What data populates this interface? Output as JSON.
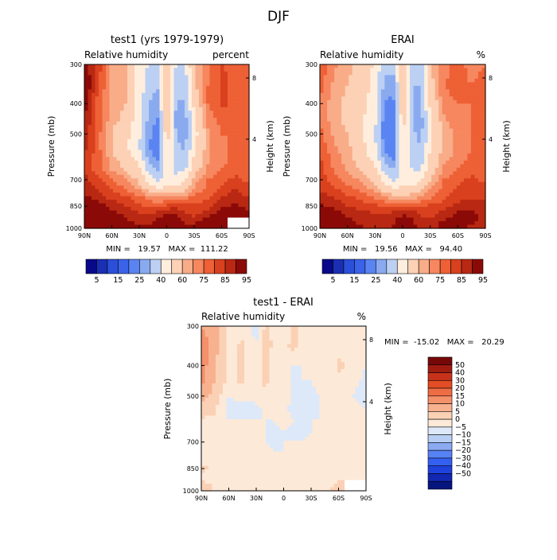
{
  "figure": {
    "title": "DJF"
  },
  "palette": {
    "cb_fill": [
      "#08088a",
      "#1a2fb3",
      "#2b4fd9",
      "#3a63ea",
      "#5a84f2",
      "#8aaaf0",
      "#bcd0f3",
      "#ffeedd",
      "#fcd1b5",
      "#f9ac88",
      "#f6875f",
      "#ee6035",
      "#d9401e",
      "#b92812",
      "#8b0a08"
    ],
    "diff_fill": [
      "#07157f",
      "#1228b2",
      "#1f41dd",
      "#3460f2",
      "#5782f4",
      "#8baaf2",
      "#b8cff3",
      "#dde9f9",
      "#fde9d8",
      "#fbd1b5",
      "#f8b18f",
      "#f4906a",
      "#ef6d44",
      "#e34c24",
      "#c9321a",
      "#a01c10",
      "#760808"
    ]
  },
  "chart_data": [
    {
      "id": "test1",
      "type": "heatmap",
      "title": "test1 (yrs 1979-1979)",
      "subtitle_left": "Relative humidity",
      "subtitle_right": "percent",
      "x_ticks": [
        "90N",
        "60N",
        "30N",
        "0",
        "30S",
        "60S",
        "90S"
      ],
      "xlim": [
        -90,
        90
      ],
      "ylabel": "Pressure (mb)",
      "y_ticks": [
        300,
        400,
        500,
        700,
        850,
        1000
      ],
      "ylim": [
        1000,
        300
      ],
      "y2label": "Height (km)",
      "y2_ticks": [
        "8",
        "4"
      ],
      "levels": [
        5,
        10,
        15,
        20,
        25,
        30,
        40,
        50,
        60,
        65,
        70,
        75,
        80,
        85,
        90,
        95
      ],
      "stats": "MIN =   19.57   MAX =  111.22",
      "grid_lat": [
        -90,
        -75,
        -60,
        -45,
        -30,
        -20,
        -10,
        0,
        10,
        20,
        30,
        45,
        60,
        75,
        90
      ],
      "grid_p": [
        300,
        350,
        400,
        450,
        500,
        550,
        600,
        650,
        700,
        750,
        800,
        850,
        900,
        950,
        1000
      ],
      "values": [
        [
          88,
          78,
          64,
          60,
          46,
          40,
          36,
          58,
          40,
          40,
          60,
          68,
          76,
          72,
          70
        ],
        [
          92,
          76,
          64,
          62,
          46,
          35,
          30,
          62,
          36,
          34,
          58,
          70,
          76,
          74,
          72
        ],
        [
          88,
          72,
          62,
          60,
          46,
          30,
          26,
          62,
          30,
          28,
          52,
          70,
          76,
          74,
          72
        ],
        [
          86,
          72,
          62,
          58,
          44,
          28,
          24,
          60,
          28,
          26,
          50,
          66,
          72,
          72,
          70
        ],
        [
          84,
          72,
          60,
          54,
          42,
          26,
          23,
          56,
          30,
          26,
          46,
          64,
          70,
          70,
          70
        ],
        [
          82,
          72,
          60,
          52,
          40,
          25,
          22,
          52,
          32,
          28,
          48,
          64,
          68,
          72,
          72
        ],
        [
          80,
          72,
          62,
          56,
          46,
          28,
          24,
          50,
          36,
          32,
          52,
          64,
          68,
          72,
          72
        ],
        [
          80,
          72,
          64,
          60,
          52,
          36,
          28,
          46,
          38,
          38,
          56,
          66,
          70,
          74,
          72
        ],
        [
          82,
          76,
          70,
          66,
          58,
          46,
          36,
          46,
          42,
          48,
          62,
          70,
          74,
          76,
          74
        ],
        [
          84,
          80,
          74,
          70,
          64,
          58,
          52,
          52,
          54,
          58,
          66,
          72,
          76,
          80,
          76
        ],
        [
          86,
          84,
          78,
          76,
          72,
          68,
          66,
          66,
          66,
          68,
          72,
          74,
          80,
          84,
          80
        ],
        [
          92,
          88,
          84,
          80,
          76,
          74,
          74,
          76,
          78,
          76,
          76,
          78,
          84,
          86,
          84
        ],
        [
          94,
          92,
          86,
          84,
          80,
          80,
          82,
          86,
          86,
          80,
          78,
          82,
          88,
          90,
          86
        ],
        [
          98,
          94,
          88,
          86,
          84,
          84,
          86,
          92,
          88,
          84,
          84,
          88,
          93,
          null,
          null
        ],
        [
          104,
          96,
          92,
          88,
          86,
          86,
          88,
          92,
          88,
          86,
          86,
          90,
          95,
          null,
          null
        ]
      ]
    },
    {
      "id": "erai",
      "type": "heatmap",
      "title": "ERAI",
      "subtitle_left": "Relative humidity",
      "subtitle_right": "%",
      "x_ticks": [
        "90N",
        "60N",
        "30N",
        "0",
        "30S",
        "60S",
        "90S"
      ],
      "xlim": [
        -90,
        90
      ],
      "ylabel": "Pressure (mb)",
      "y_ticks": [
        300,
        400,
        500,
        700,
        850,
        1000
      ],
      "ylim": [
        1000,
        300
      ],
      "y2label": "Height (km)",
      "y2_ticks": [
        "8",
        "4"
      ],
      "levels": [
        5,
        10,
        15,
        20,
        25,
        30,
        40,
        50,
        60,
        65,
        70,
        75,
        80,
        85,
        90,
        95
      ],
      "stats": "MIN =   19.56   MAX =   94.40",
      "grid_lat": [
        -90,
        -75,
        -60,
        -45,
        -30,
        -20,
        -10,
        0,
        10,
        20,
        30,
        45,
        60,
        75,
        90
      ],
      "grid_p": [
        300,
        350,
        400,
        450,
        500,
        550,
        600,
        650,
        700,
        750,
        800,
        850,
        900,
        950,
        1000
      ],
      "values": [
        [
          74,
          66,
          62,
          58,
          48,
          34,
          32,
          58,
          34,
          36,
          60,
          68,
          72,
          68,
          70
        ],
        [
          72,
          64,
          60,
          56,
          46,
          28,
          26,
          58,
          30,
          30,
          56,
          70,
          72,
          70,
          72
        ],
        [
          70,
          62,
          58,
          54,
          44,
          24,
          24,
          58,
          30,
          28,
          52,
          68,
          70,
          70,
          72
        ],
        [
          70,
          62,
          58,
          52,
          42,
          22,
          22,
          56,
          30,
          26,
          50,
          64,
          68,
          70,
          72
        ],
        [
          72,
          64,
          60,
          52,
          40,
          21,
          20,
          52,
          32,
          27,
          48,
          62,
          66,
          70,
          72
        ],
        [
          74,
          66,
          62,
          54,
          42,
          24,
          22,
          50,
          34,
          30,
          50,
          62,
          66,
          70,
          72
        ],
        [
          76,
          68,
          62,
          56,
          46,
          28,
          24,
          48,
          36,
          34,
          52,
          64,
          66,
          72,
          72
        ],
        [
          76,
          70,
          64,
          60,
          52,
          36,
          30,
          46,
          40,
          40,
          56,
          66,
          70,
          74,
          72
        ],
        [
          78,
          72,
          68,
          64,
          58,
          46,
          38,
          46,
          42,
          48,
          60,
          70,
          74,
          76,
          74
        ],
        [
          80,
          76,
          72,
          68,
          64,
          56,
          52,
          52,
          54,
          58,
          66,
          72,
          76,
          78,
          76
        ],
        [
          82,
          80,
          76,
          74,
          70,
          66,
          64,
          64,
          64,
          66,
          70,
          74,
          78,
          80,
          78
        ],
        [
          86,
          84,
          80,
          78,
          76,
          74,
          74,
          74,
          76,
          74,
          76,
          78,
          82,
          84,
          82
        ],
        [
          90,
          88,
          84,
          82,
          80,
          80,
          82,
          84,
          84,
          78,
          78,
          82,
          86,
          86,
          84
        ],
        [
          92,
          90,
          86,
          84,
          82,
          82,
          84,
          90,
          86,
          82,
          82,
          86,
          88,
          86,
          84
        ],
        [
          94,
          92,
          88,
          86,
          84,
          84,
          86,
          88,
          86,
          84,
          84,
          86,
          86,
          84,
          84
        ]
      ]
    },
    {
      "id": "diff",
      "type": "heatmap",
      "title": "test1 - ERAI",
      "subtitle_left": "Relative humidity",
      "subtitle_right": "%",
      "x_ticks": [
        "90N",
        "60N",
        "30N",
        "0",
        "30S",
        "60S",
        "90S"
      ],
      "xlim": [
        -90,
        90
      ],
      "ylabel": "Pressure (mb)",
      "y_ticks": [
        300,
        400,
        500,
        700,
        850,
        1000
      ],
      "ylim": [
        1000,
        300
      ],
      "y2label": "Height (km)",
      "y2_ticks": [
        "8",
        "4"
      ],
      "levels": [
        -50,
        -40,
        -30,
        -20,
        -15,
        -10,
        -5,
        0,
        5,
        10,
        15,
        20,
        30,
        40,
        50
      ],
      "stats": "MIN =  -15.02   MAX =   20.29",
      "grid_lat": [
        -90,
        -75,
        -60,
        -45,
        -30,
        -20,
        -10,
        0,
        10,
        20,
        30,
        45,
        60,
        75,
        90
      ],
      "grid_p": [
        300,
        350,
        400,
        450,
        500,
        550,
        600,
        650,
        700,
        750,
        800,
        850,
        900,
        950,
        1000
      ],
      "values": [
        [
          14,
          12,
          2,
          2,
          -2,
          6,
          4,
          0,
          6,
          4,
          0,
          0,
          4,
          4,
          0
        ],
        [
          20,
          12,
          4,
          6,
          0,
          7,
          4,
          4,
          6,
          4,
          2,
          0,
          4,
          4,
          0
        ],
        [
          18,
          10,
          4,
          6,
          2,
          6,
          2,
          4,
          0,
          0,
          0,
          2,
          6,
          4,
          0
        ],
        [
          16,
          10,
          4,
          6,
          2,
          6,
          2,
          4,
          -2,
          0,
          0,
          2,
          4,
          2,
          -2
        ],
        [
          12,
          8,
          0,
          2,
          2,
          5,
          3,
          4,
          -2,
          -1,
          -2,
          2,
          4,
          0,
          -2
        ],
        [
          8,
          6,
          -2,
          -2,
          -2,
          1,
          0,
          2,
          -2,
          -2,
          -2,
          2,
          2,
          2,
          0
        ],
        [
          4,
          4,
          0,
          0,
          0,
          0,
          0,
          2,
          0,
          -2,
          0,
          0,
          2,
          0,
          0
        ],
        [
          4,
          2,
          0,
          0,
          0,
          0,
          -2,
          0,
          -2,
          -2,
          0,
          0,
          0,
          0,
          0
        ],
        [
          4,
          4,
          2,
          2,
          0,
          0,
          -2,
          0,
          0,
          0,
          2,
          0,
          0,
          0,
          0
        ],
        [
          4,
          4,
          2,
          2,
          0,
          2,
          0,
          0,
          0,
          0,
          0,
          0,
          0,
          2,
          0
        ],
        [
          4,
          4,
          2,
          2,
          2,
          2,
          2,
          2,
          2,
          2,
          2,
          0,
          2,
          4,
          2
        ],
        [
          6,
          4,
          4,
          2,
          0,
          0,
          0,
          2,
          2,
          2,
          0,
          0,
          2,
          2,
          2
        ],
        [
          4,
          0,
          2,
          2,
          0,
          2,
          4,
          2,
          2,
          2,
          0,
          0,
          2,
          4,
          2
        ],
        [
          6,
          4,
          2,
          0,
          2,
          2,
          2,
          2,
          2,
          2,
          2,
          2,
          5,
          null,
          null
        ],
        [
          10,
          4,
          4,
          2,
          2,
          2,
          2,
          4,
          2,
          2,
          2,
          4,
          9,
          null,
          null
        ]
      ]
    }
  ],
  "colorbars": {
    "cb1": [
      "5",
      "15",
      "25",
      "40",
      "60",
      "75",
      "85",
      "95"
    ],
    "cb2": [
      "5",
      "15",
      "25",
      "40",
      "60",
      "75",
      "85",
      "95"
    ],
    "diff": [
      "50",
      "40",
      "30",
      "20",
      "15",
      "10",
      "5",
      "0",
      "−5",
      "−10",
      "−15",
      "−20",
      "−30",
      "−40",
      "−50"
    ]
  }
}
